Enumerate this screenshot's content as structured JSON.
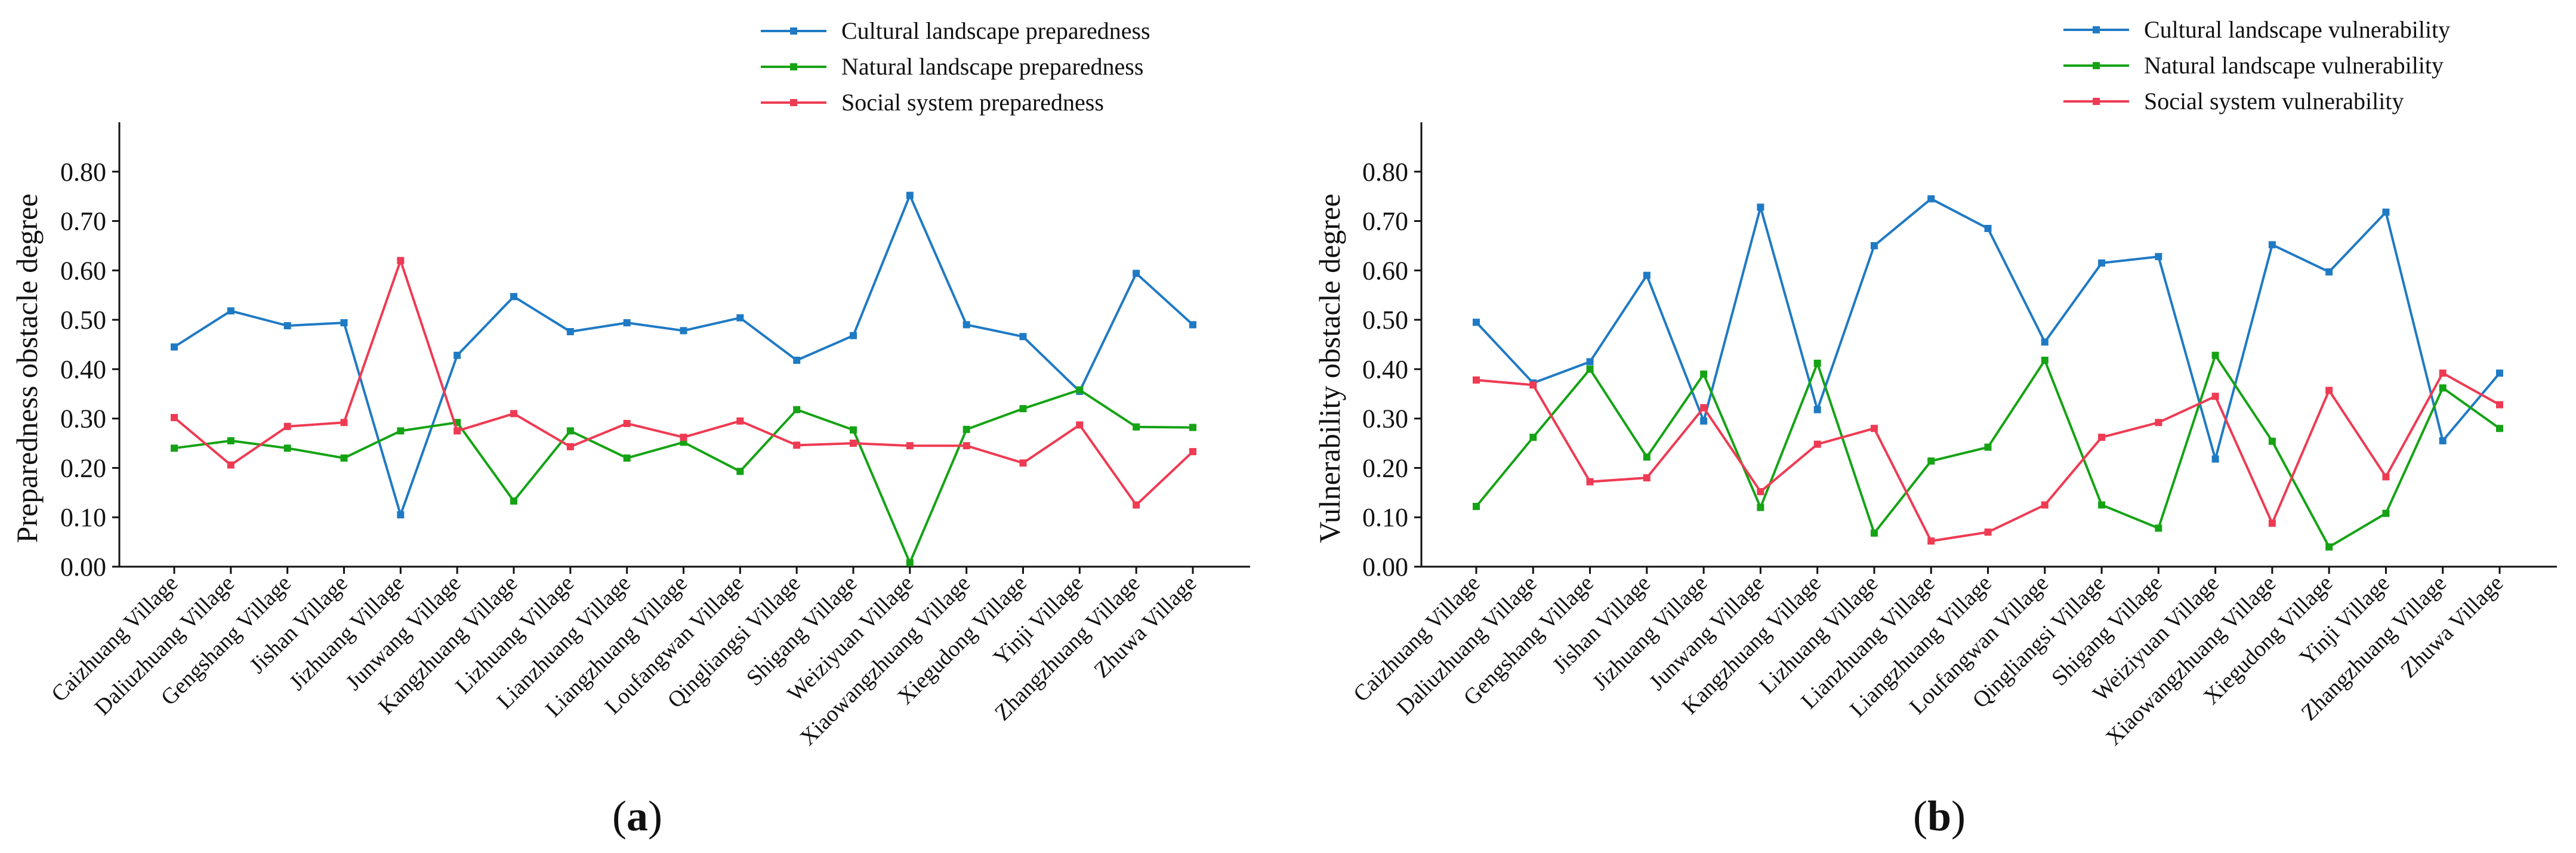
{
  "chart_data": [
    {
      "type": "line",
      "panel_label": "a",
      "ylabel": "Preparedness obstacle degree",
      "xlabel": "",
      "ylim": [
        0,
        0.9
      ],
      "yticks": [
        "0.00",
        "0.10",
        "0.20",
        "0.30",
        "0.40",
        "0.50",
        "0.60",
        "0.70",
        "0.80"
      ],
      "legend_position": "top-center",
      "categories": [
        "Caizhuang Village",
        "Daliuzhuang Village",
        "Gengshang Village",
        "Jishan Village",
        "Jizhuang Village",
        "Junwang Village",
        "Kangzhuang Village",
        "Lizhuang Village",
        "Lianzhuang Village",
        "Liangzhuang Village",
        "Loufangwan Village",
        "Qingliangsi Village",
        "Shigang Village",
        "Weiziyuan Village",
        "Xiaowangzhuang Village",
        "Xiegudong Village",
        "Yinji Village",
        "Zhangzhuang Village",
        "Zhuwa Village"
      ],
      "series": [
        {
          "name": "Cultural landscape preparedness",
          "color": "#1f7ac4",
          "values": [
            0.445,
            0.518,
            0.488,
            0.494,
            0.105,
            0.428,
            0.547,
            0.476,
            0.494,
            0.478,
            0.504,
            0.418,
            0.468,
            0.752,
            0.49,
            0.466,
            0.355,
            0.594,
            0.49
          ]
        },
        {
          "name": "Natural landscape preparedness",
          "color": "#15a315",
          "values": [
            0.24,
            0.255,
            0.24,
            0.22,
            0.275,
            0.292,
            0.133,
            0.275,
            0.22,
            0.252,
            0.193,
            0.318,
            0.277,
            0.008,
            0.278,
            0.32,
            0.358,
            0.283,
            0.282
          ]
        },
        {
          "name": "Social system preparedness",
          "color": "#ee3b53",
          "values": [
            0.302,
            0.206,
            0.284,
            0.292,
            0.62,
            0.275,
            0.31,
            0.243,
            0.29,
            0.262,
            0.295,
            0.246,
            0.25,
            0.245,
            0.245,
            0.21,
            0.287,
            0.125,
            0.233
          ]
        }
      ]
    },
    {
      "type": "line",
      "panel_label": "b",
      "ylabel": "Vulnerability obstacle degree",
      "xlabel": "",
      "ylim": [
        0,
        0.9
      ],
      "yticks": [
        "0.00",
        "0.10",
        "0.20",
        "0.30",
        "0.40",
        "0.50",
        "0.60",
        "0.70",
        "0.80"
      ],
      "legend_position": "top-center",
      "categories": [
        "Caizhuang Village",
        "Daliuzhuang Village",
        "Gengshang Village",
        "Jishan Village",
        "Jizhuang Village",
        "Junwang Village",
        "Kangzhuang Village",
        "Lizhuang Village",
        "Lianzhuang Village",
        "Liangzhuang Village",
        "Loufangwan Village",
        "Qingliangsi Village",
        "Shigang Village",
        "Weiziyuan Village",
        "Xiaowangzhuang Village",
        "Xiegudong Village",
        "Yinji Village",
        "Zhangzhuang Village",
        "Zhuwa Village"
      ],
      "series": [
        {
          "name": "Cultural landscape vulnerability",
          "color": "#1f7ac4",
          "values": [
            0.495,
            0.372,
            0.415,
            0.59,
            0.295,
            0.728,
            0.318,
            0.65,
            0.745,
            0.685,
            0.455,
            0.615,
            0.628,
            0.218,
            0.652,
            0.597,
            0.718,
            0.255,
            0.392
          ]
        },
        {
          "name": "Natural landscape vulnerability",
          "color": "#15a315",
          "values": [
            0.122,
            0.262,
            0.4,
            0.222,
            0.39,
            0.12,
            0.412,
            0.068,
            0.214,
            0.242,
            0.418,
            0.125,
            0.078,
            0.428,
            0.254,
            0.04,
            0.108,
            0.362,
            0.28
          ]
        },
        {
          "name": "Social system vulnerability",
          "color": "#ee3b53",
          "values": [
            0.378,
            0.368,
            0.172,
            0.18,
            0.322,
            0.152,
            0.248,
            0.28,
            0.052,
            0.07,
            0.125,
            0.262,
            0.292,
            0.345,
            0.088,
            0.357,
            0.182,
            0.392,
            0.328
          ]
        }
      ]
    }
  ]
}
